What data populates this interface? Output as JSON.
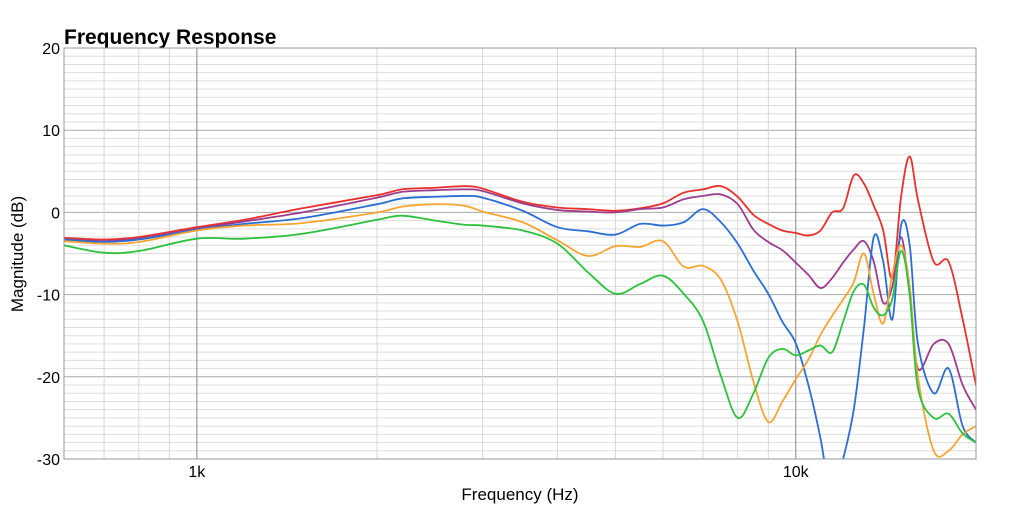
{
  "chart_data": {
    "type": "line",
    "title": "Frequency Response",
    "xlabel": "Frequency (Hz)",
    "ylabel": "Magnitude (dB)",
    "x_scale": "log",
    "xlim": [
      600,
      20000
    ],
    "ylim": [
      -30,
      20
    ],
    "x_ticks": [
      {
        "value": 1000,
        "label": "1k"
      },
      {
        "value": 10000,
        "label": "10k"
      }
    ],
    "y_ticks": [
      {
        "value": 20,
        "label": "20"
      },
      {
        "value": 10,
        "label": "10"
      },
      {
        "value": 0,
        "label": "0"
      },
      {
        "value": -10,
        "label": "-10"
      },
      {
        "value": -20,
        "label": "-20"
      },
      {
        "value": -30,
        "label": "-30"
      }
    ],
    "grid": true,
    "legend": "none",
    "series": [
      {
        "color": "#e8302d",
        "x": [
          600,
          700,
          800,
          1000,
          1200,
          1500,
          2000,
          2200,
          2500,
          2800,
          3000,
          3500,
          4000,
          4500,
          5000,
          5500,
          6000,
          6500,
          7000,
          7500,
          8000,
          8500,
          9000,
          9500,
          10000,
          10500,
          11000,
          11500,
          12000,
          12500,
          13000,
          13500,
          14000,
          14500,
          15000,
          15500,
          16000,
          17000,
          18000,
          19000,
          20000
        ],
        "y": [
          -3.1,
          -3.3,
          -3,
          -1.8,
          -0.9,
          0.5,
          2.1,
          2.8,
          3,
          3.2,
          2.9,
          1.3,
          0.6,
          0.4,
          0.2,
          0.5,
          1.1,
          2.4,
          2.8,
          3.2,
          1.9,
          -0.3,
          -1.4,
          -2.2,
          -2.5,
          -2.8,
          -2.2,
          0,
          0.5,
          4.5,
          3.5,
          0.8,
          -2.2,
          -8,
          2,
          6.8,
          1.5,
          -6,
          -6,
          -13,
          -21
        ]
      },
      {
        "color": "#9b3d8e",
        "x": [
          600,
          700,
          800,
          1000,
          1200,
          1500,
          2000,
          2200,
          2500,
          2800,
          3000,
          3500,
          4000,
          4500,
          5000,
          5500,
          6000,
          6500,
          7000,
          7500,
          8000,
          8500,
          9000,
          9500,
          10000,
          10500,
          11000,
          11500,
          12000,
          12500,
          13000,
          13500,
          14000,
          14500,
          15000,
          15500,
          16000,
          17000,
          18000,
          19000,
          20000
        ],
        "y": [
          -3.3,
          -3.5,
          -3.2,
          -2,
          -1.1,
          0,
          1.8,
          2.5,
          2.7,
          2.8,
          2.6,
          1.1,
          0.3,
          0.1,
          0,
          0.4,
          0.6,
          1.6,
          2,
          2.2,
          1,
          -2.1,
          -3.6,
          -4.6,
          -6.1,
          -7.6,
          -9.2,
          -8,
          -6.1,
          -4.5,
          -3.5,
          -6,
          -11,
          -9,
          -3,
          -10,
          -19,
          -16,
          -16,
          -21,
          -24
        ]
      },
      {
        "color": "#2b6ed3",
        "x": [
          600,
          700,
          800,
          1000,
          1200,
          1500,
          2000,
          2200,
          2500,
          2800,
          3000,
          3500,
          4000,
          4500,
          5000,
          5500,
          6000,
          6500,
          7000,
          7500,
          8000,
          8500,
          9000,
          9500,
          10000,
          10500,
          11000,
          11500,
          12000,
          12500,
          13000,
          13500,
          14000,
          14500,
          15000,
          15500,
          16000,
          17000,
          18000,
          19000,
          20000
        ],
        "y": [
          -3.3,
          -3.6,
          -3.3,
          -2.1,
          -1.4,
          -0.7,
          1,
          1.7,
          1.9,
          2,
          1.8,
          0.2,
          -1.8,
          -2.3,
          -2.7,
          -1.4,
          -1.6,
          -1.2,
          0.4,
          -1.2,
          -3.8,
          -7.1,
          -9.9,
          -13.3,
          -15.9,
          -21,
          -27.5,
          -35,
          -30,
          -24,
          -14,
          -3,
          -6,
          -13,
          -1.5,
          -4,
          -16,
          -22,
          -19,
          -26,
          -28
        ]
      },
      {
        "color": "#f5a534",
        "x": [
          600,
          700,
          800,
          1000,
          1200,
          1500,
          2000,
          2200,
          2500,
          2800,
          3000,
          3500,
          4000,
          4500,
          5000,
          5500,
          6000,
          6500,
          7000,
          7500,
          8000,
          8500,
          9000,
          9500,
          10000,
          10500,
          11000,
          11500,
          12000,
          12500,
          13000,
          13500,
          14000,
          14500,
          15000,
          15500,
          16000,
          17000,
          18000,
          19000,
          20000
        ],
        "y": [
          -3.5,
          -3.8,
          -3.6,
          -2.2,
          -1.6,
          -1.3,
          0,
          0.7,
          1,
          0.8,
          0.1,
          -1.2,
          -3.4,
          -5.3,
          -4.1,
          -4.2,
          -3.5,
          -6.6,
          -6.5,
          -8.2,
          -13.3,
          -20.6,
          -25.5,
          -23,
          -20.3,
          -17.9,
          -14.9,
          -12.6,
          -10.6,
          -8.5,
          -5,
          -10,
          -13.5,
          -7.5,
          -4,
          -9,
          -20,
          -29,
          -29,
          -27,
          -26
        ]
      },
      {
        "color": "#2dc13e",
        "x": [
          600,
          700,
          800,
          1000,
          1200,
          1500,
          2000,
          2200,
          2500,
          2800,
          3000,
          3500,
          4000,
          4500,
          5000,
          5500,
          6000,
          6500,
          7000,
          7500,
          8000,
          8500,
          9000,
          9500,
          10000,
          10500,
          11000,
          11500,
          12000,
          12500,
          13000,
          13500,
          14000,
          14500,
          15000,
          15500,
          16000,
          17000,
          18000,
          19000,
          20000
        ],
        "y": [
          -4,
          -4.9,
          -4.7,
          -3.2,
          -3.2,
          -2.6,
          -0.9,
          -0.4,
          -1,
          -1.5,
          -1.6,
          -2.2,
          -3.8,
          -7.3,
          -9.9,
          -8.7,
          -7.7,
          -9.9,
          -13.2,
          -19.9,
          -25,
          -22,
          -17.7,
          -16.6,
          -17.4,
          -16.8,
          -16.2,
          -17,
          -13.3,
          -9.6,
          -8.8,
          -11.6,
          -12.5,
          -10.5,
          -4.7,
          -10,
          -21.4,
          -25,
          -24.5,
          -26.9,
          -28
        ]
      }
    ]
  }
}
